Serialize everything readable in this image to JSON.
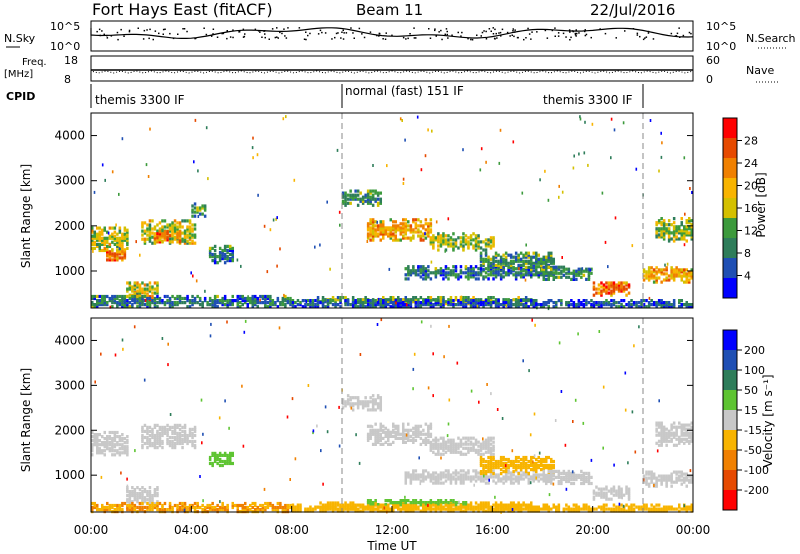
{
  "header": {
    "title": "Fort Hays East (fitACF)",
    "beam": "Beam 11",
    "date": "22/Jul/2016"
  },
  "sky_panel": {
    "left_label": "N.Sky",
    "right_label": "N.Search",
    "ticks": [
      "10^5",
      "10^0"
    ]
  },
  "freq_panel": {
    "left_label": "Freq.",
    "left_unit": "[MHz]",
    "left_ticks": [
      "18",
      "8"
    ],
    "right_label": "Nave",
    "right_ticks": [
      "60",
      "0"
    ]
  },
  "cpid_panel": {
    "label": "CPID",
    "modes": [
      {
        "name": "themis 3300 IF",
        "start_hour": 0
      },
      {
        "name": "normal (fast) 151 IF",
        "start_hour": 10
      },
      {
        "name": "themis 3300 IF",
        "start_hour": 22
      }
    ]
  },
  "colors": {
    "power": [
      "#0000ff",
      "#1f4fb4",
      "#2e7d5a",
      "#3c9a3c",
      "#d4c000",
      "#f8b400",
      "#f08000",
      "#e64a00",
      "#ff0000"
    ],
    "velocity": [
      "#0000ff",
      "#1f4fb4",
      "#2e7d5a",
      "#5ec432",
      "#c8c8c8",
      "#f8b400",
      "#f08000",
      "#e64a00",
      "#ff0000"
    ]
  },
  "chart_data": [
    {
      "type": "heatmap",
      "name": "power",
      "ylabel": "Slant Range [km]",
      "xlim": [
        0,
        24
      ],
      "ylim": [
        180,
        4500
      ],
      "yticks": [
        1000,
        2000,
        3000,
        4000
      ],
      "colorbar": {
        "label": "Power [dB]",
        "range": [
          0,
          32
        ],
        "tick_labels": [
          "4",
          "8",
          "12",
          "16",
          "20",
          "24",
          "28"
        ]
      },
      "echo_regions": [
        {
          "t0": 0.0,
          "t1": 1.5,
          "r_center": 1750,
          "r_half": 260,
          "level": 16
        },
        {
          "t0": 0.6,
          "t1": 1.4,
          "r_center": 1400,
          "r_half": 120,
          "level": 24
        },
        {
          "t0": 2.0,
          "t1": 4.2,
          "r_center": 1900,
          "r_half": 250,
          "level": 16
        },
        {
          "t0": 2.5,
          "t1": 3.6,
          "r_center": 1800,
          "r_half": 120,
          "level": 24
        },
        {
          "t0": 4.0,
          "t1": 4.5,
          "r_center": 2400,
          "r_half": 150,
          "level": 12
        },
        {
          "t0": 4.7,
          "t1": 5.6,
          "r_center": 1400,
          "r_half": 180,
          "level": 8
        },
        {
          "t0": 1.7,
          "t1": 2.5,
          "r_center": 450,
          "r_half": 120,
          "level": 28
        },
        {
          "t0": 1.4,
          "t1": 2.7,
          "r_center": 650,
          "r_half": 150,
          "level": 16
        },
        {
          "t0": 10.0,
          "t1": 11.5,
          "r_center": 2650,
          "r_half": 160,
          "level": 10
        },
        {
          "t0": 11.0,
          "t1": 13.5,
          "r_center": 1950,
          "r_half": 230,
          "level": 20
        },
        {
          "t0": 13.5,
          "t1": 16.0,
          "r_center": 1700,
          "r_half": 200,
          "level": 14
        },
        {
          "t0": 12.5,
          "t1": 18.5,
          "r_center": 1000,
          "r_half": 140,
          "level": 8
        },
        {
          "t0": 15.5,
          "t1": 18.5,
          "r_center": 1250,
          "r_half": 180,
          "level": 10
        },
        {
          "t0": 9.0,
          "t1": 17.5,
          "r_center": 380,
          "r_half": 70,
          "level": 12
        },
        {
          "t0": 18.0,
          "t1": 20.0,
          "r_center": 1000,
          "r_half": 150,
          "level": 10
        },
        {
          "t0": 20.0,
          "t1": 21.5,
          "r_center": 650,
          "r_half": 150,
          "level": 24
        },
        {
          "t0": 22.0,
          "t1": 24.0,
          "r_center": 950,
          "r_half": 160,
          "level": 20
        },
        {
          "t0": 22.5,
          "t1": 24.0,
          "r_center": 1950,
          "r_half": 250,
          "level": 14
        },
        {
          "t0": 0.0,
          "t1": 8.0,
          "r_center": 350,
          "r_half": 150,
          "level": 8
        },
        {
          "t0": 8.0,
          "t1": 24.0,
          "r_center": 300,
          "r_half": 100,
          "level": 6
        }
      ]
    },
    {
      "type": "heatmap",
      "name": "velocity",
      "ylabel": "Slant Range [km]",
      "xlabel": "Time UT",
      "xlim": [
        0,
        24
      ],
      "ylim": [
        180,
        4500
      ],
      "yticks": [
        1000,
        2000,
        3000,
        4000
      ],
      "xtick_labels": [
        "00:00",
        "04:00",
        "08:00",
        "12:00",
        "16:00",
        "20:00",
        "00:00"
      ],
      "xtick_hours": [
        0,
        4,
        8,
        12,
        16,
        20,
        24
      ],
      "colorbar": {
        "label": "Velocity [m s⁻¹]",
        "tick_labels": [
          "200",
          "100",
          "50",
          "15",
          "-15",
          "-50",
          "-100",
          "-200"
        ]
      },
      "echo_regions": [
        {
          "t0": 0.0,
          "t1": 1.5,
          "r_center": 1750,
          "r_half": 260,
          "level": 0
        },
        {
          "t0": 2.0,
          "t1": 4.2,
          "r_center": 1900,
          "r_half": 250,
          "level": 0
        },
        {
          "t0": 4.7,
          "t1": 5.6,
          "r_center": 1400,
          "r_half": 150,
          "level": 30
        },
        {
          "t0": 1.4,
          "t1": 2.7,
          "r_center": 600,
          "r_half": 200,
          "level": 0
        },
        {
          "t0": 10.0,
          "t1": 11.5,
          "r_center": 2650,
          "r_half": 160,
          "level": 0
        },
        {
          "t0": 11.0,
          "t1": 13.5,
          "r_center": 1950,
          "r_half": 230,
          "level": 0
        },
        {
          "t0": 13.5,
          "t1": 16.0,
          "r_center": 1700,
          "r_half": 200,
          "level": 0
        },
        {
          "t0": 12.5,
          "t1": 18.5,
          "r_center": 1000,
          "r_half": 140,
          "level": 0
        },
        {
          "t0": 15.5,
          "t1": 18.5,
          "r_center": 1250,
          "r_half": 180,
          "level": -30
        },
        {
          "t0": 9.0,
          "t1": 17.5,
          "r_center": 350,
          "r_half": 70,
          "level": -40
        },
        {
          "t0": 11.0,
          "t1": 15.0,
          "r_center": 430,
          "r_half": 50,
          "level": 30
        },
        {
          "t0": 18.0,
          "t1": 20.0,
          "r_center": 1000,
          "r_half": 150,
          "level": 0
        },
        {
          "t0": 20.0,
          "t1": 21.5,
          "r_center": 650,
          "r_half": 150,
          "level": 0
        },
        {
          "t0": 22.0,
          "t1": 24.0,
          "r_center": 950,
          "r_half": 160,
          "level": 0
        },
        {
          "t0": 22.5,
          "t1": 24.0,
          "r_center": 1950,
          "r_half": 250,
          "level": 0
        },
        {
          "t0": 0.0,
          "t1": 8.0,
          "r_center": 300,
          "r_half": 120,
          "level": -50
        },
        {
          "t0": 8.0,
          "t1": 24.0,
          "r_center": 280,
          "r_half": 90,
          "level": -40
        }
      ]
    }
  ]
}
